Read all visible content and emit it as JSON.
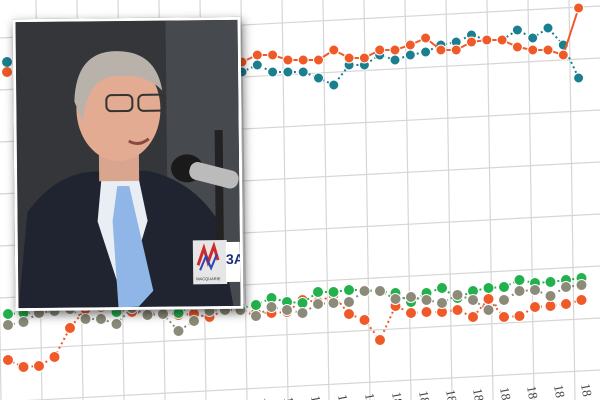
{
  "chart_data": {
    "type": "line",
    "title": "",
    "xlabel": "",
    "ylabel": "",
    "grid": true,
    "legend": "none",
    "tick_labels": [
      "17",
      "17",
      "17",
      "17",
      "17",
      "17",
      "18",
      "18",
      "18",
      "18",
      "18",
      "18",
      "18",
      "18"
    ],
    "panels": [
      {
        "series": [
          {
            "color": "#1a7f8e",
            "values": [
              28,
              35,
              28,
              28,
              28,
              22,
              15,
              35,
              35,
              45,
              40,
              45,
              48,
              55,
              58,
              65,
              60,
              60,
              70,
              62,
              72,
              55,
              22
            ]
          },
          {
            "color": "#f05a28",
            "values": [
              38,
              45,
              45,
              40,
              40,
              40,
              50,
              42,
              42,
              50,
              50,
              55,
              62,
              50,
              50,
              58,
              60,
              60,
              53,
              50,
              50,
              45,
              92
            ]
          }
        ]
      },
      {
        "series": [
          {
            "color": "#8c8a78",
            "values": [
              35,
              38,
              47,
              49,
              51,
              41,
              41,
              36,
              52,
              45,
              46,
              29,
              39,
              49,
              50,
              50,
              44,
              53,
              50,
              47,
              56,
              57,
              58,
              69,
              69,
              61,
              63,
              60,
              57,
              65,
              60,
              50,
              60,
              69,
              70,
              64,
              73,
              75
            ]
          },
          {
            "color": "#22b14c",
            "values": [
              46,
              47,
              47,
              49,
              57,
              55,
              55,
              48,
              58,
              56,
              56,
              47,
              56,
              55,
              56,
              52,
              55,
              62,
              58,
              57,
              68,
              68,
              70,
              70,
              69,
              67,
              58,
              67,
              72,
              62,
              69,
              72,
              73,
              80,
              77,
              78,
              80,
              82
            ]
          },
          {
            "color": "#f05a28",
            "values": [
              0,
              -7,
              -6,
              3,
              32,
              51,
              53,
              51,
              48,
              47,
              48,
              45,
              46,
              43,
              50,
              50,
              47,
              47,
              48,
              60,
              58,
              65,
              46,
              40,
              20,
              54,
              47,
              48,
              48,
              50,
              43,
              61,
              43,
              44,
              53,
              54,
              56,
              60
            ]
          }
        ]
      }
    ]
  },
  "photo": {
    "mic_flag_text": "3AW",
    "mic_logo_text": "MACQUARIE"
  }
}
